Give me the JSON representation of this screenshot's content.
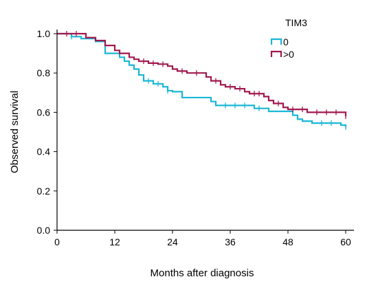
{
  "chart_data": {
    "type": "line",
    "title": "",
    "xlabel": "Months after diagnosis",
    "ylabel": "Observed survival",
    "xlim": [
      0,
      60
    ],
    "ylim": [
      0,
      1
    ],
    "xticks": [
      "0",
      "12",
      "24",
      "36",
      "48",
      "60"
    ],
    "yticks": [
      "0.0",
      "0.2",
      "0.4",
      "0.6",
      "0.8",
      "1.0"
    ],
    "grid": false,
    "legend": {
      "title": "TIM3",
      "position": "top-right"
    },
    "series": [
      {
        "name": "0",
        "color": "#1ab6d6",
        "steps": [
          [
            0,
            1.0
          ],
          [
            3,
            0.985
          ],
          [
            5,
            0.975
          ],
          [
            8,
            0.96
          ],
          [
            10,
            0.9
          ],
          [
            13,
            0.88
          ],
          [
            14,
            0.86
          ],
          [
            15,
            0.84
          ],
          [
            16,
            0.82
          ],
          [
            17,
            0.79
          ],
          [
            18,
            0.76
          ],
          [
            20,
            0.745
          ],
          [
            22,
            0.73
          ],
          [
            23,
            0.71
          ],
          [
            24,
            0.705
          ],
          [
            26,
            0.675
          ],
          [
            32,
            0.655
          ],
          [
            33,
            0.635
          ],
          [
            41,
            0.62
          ],
          [
            44,
            0.605
          ],
          [
            49,
            0.585
          ],
          [
            50,
            0.565
          ],
          [
            51,
            0.555
          ],
          [
            53,
            0.545
          ],
          [
            59,
            0.535
          ],
          [
            60,
            0.525
          ]
        ],
        "censors": [
          [
            3,
            0.985
          ],
          [
            19,
            0.76
          ],
          [
            21,
            0.745
          ],
          [
            23,
            0.71
          ],
          [
            35,
            0.635
          ],
          [
            37,
            0.635
          ],
          [
            39,
            0.635
          ],
          [
            42,
            0.62
          ],
          [
            55,
            0.545
          ],
          [
            57,
            0.545
          ],
          [
            60,
            0.525
          ]
        ]
      },
      {
        "name": ">0",
        "color": "#a0184e",
        "steps": [
          [
            0,
            1.0
          ],
          [
            6,
            0.98
          ],
          [
            8,
            0.965
          ],
          [
            10,
            0.94
          ],
          [
            12,
            0.915
          ],
          [
            13,
            0.9
          ],
          [
            15,
            0.88
          ],
          [
            16,
            0.87
          ],
          [
            17,
            0.86
          ],
          [
            19,
            0.85
          ],
          [
            21,
            0.845
          ],
          [
            23,
            0.835
          ],
          [
            24,
            0.82
          ],
          [
            25,
            0.81
          ],
          [
            27,
            0.8
          ],
          [
            31,
            0.78
          ],
          [
            32,
            0.76
          ],
          [
            34,
            0.74
          ],
          [
            35,
            0.73
          ],
          [
            37,
            0.72
          ],
          [
            39,
            0.705
          ],
          [
            40,
            0.695
          ],
          [
            43,
            0.68
          ],
          [
            44,
            0.66
          ],
          [
            45,
            0.645
          ],
          [
            47,
            0.625
          ],
          [
            48,
            0.615
          ],
          [
            52,
            0.6
          ],
          [
            60,
            0.58
          ]
        ],
        "censors": [
          [
            2,
            1.0
          ],
          [
            4,
            1.0
          ],
          [
            18,
            0.86
          ],
          [
            20,
            0.85
          ],
          [
            22,
            0.845
          ],
          [
            26,
            0.81
          ],
          [
            29,
            0.8
          ],
          [
            33,
            0.76
          ],
          [
            36,
            0.73
          ],
          [
            38,
            0.72
          ],
          [
            41,
            0.695
          ],
          [
            42,
            0.695
          ],
          [
            46,
            0.645
          ],
          [
            49,
            0.615
          ],
          [
            51,
            0.615
          ],
          [
            54,
            0.6
          ],
          [
            56,
            0.6
          ],
          [
            58,
            0.6
          ],
          [
            60,
            0.58
          ]
        ]
      }
    ]
  }
}
